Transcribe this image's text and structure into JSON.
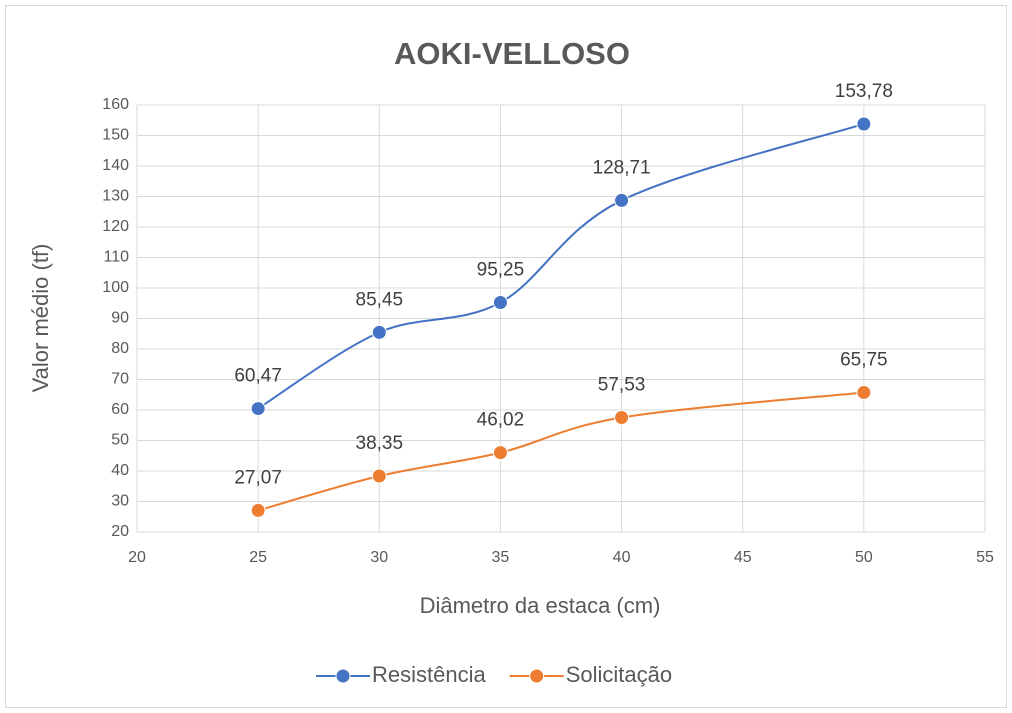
{
  "chart_data": {
    "type": "scatter",
    "title": "AOKI-VELLOSO",
    "x_label": "Diâmetro da estaca (cm)",
    "y_label": "Valor médio (tf)",
    "x": [
      25,
      30,
      35,
      40,
      50
    ],
    "series": [
      {
        "name": "Resistência",
        "color": "#4472c4",
        "values": [
          60.47,
          85.45,
          95.25,
          128.71,
          153.78
        ],
        "value_labels": [
          "60,47",
          "85,45",
          "95,25",
          "128,71",
          "153,78"
        ]
      },
      {
        "name": "Solicitação",
        "color": "#ed7d31",
        "values": [
          27.07,
          38.35,
          46.02,
          57.53,
          65.75
        ],
        "value_labels": [
          "27,07",
          "38,35",
          "46,02",
          "57,53",
          "65,75"
        ]
      }
    ],
    "xlim": [
      20,
      55
    ],
    "xticks": [
      20,
      25,
      30,
      35,
      40,
      45,
      50,
      55
    ],
    "ylim": [
      20,
      160
    ],
    "yticks": [
      20,
      30,
      40,
      50,
      60,
      70,
      80,
      90,
      100,
      110,
      120,
      130,
      140,
      150,
      160
    ],
    "grid": true,
    "smooth": true,
    "legend": "bottom"
  }
}
